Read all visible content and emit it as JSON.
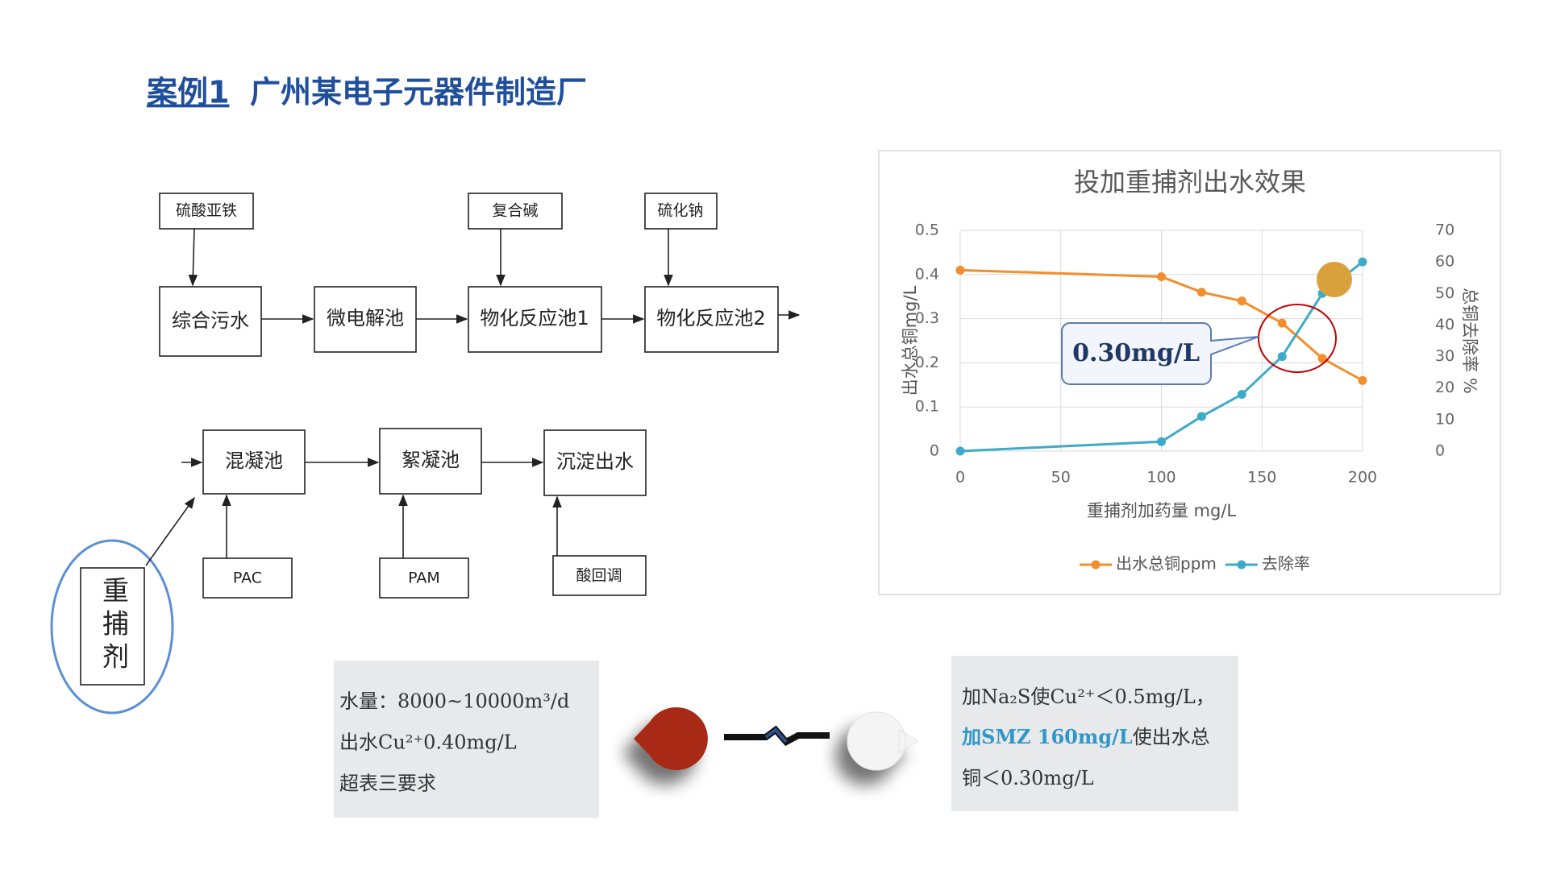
{
  "header": {
    "case": "案例1",
    "title": "广州某电子元器件制造厂"
  },
  "diagram": {
    "reagents_top": [
      "硫酸亚铁",
      "复合碱",
      "硫化钠"
    ],
    "row1": [
      "综合污水",
      "微电解池",
      "物化反应池1",
      "物化反应池2"
    ],
    "row2": [
      "混凝池",
      "絮凝池",
      "沉淀出水"
    ],
    "reagents_bottom": [
      "PAC",
      "PAM",
      "酸回调"
    ],
    "additive": "重捕剂"
  },
  "chart_data": {
    "type": "line",
    "title": "投加重捕剂出水效果",
    "x": [
      0,
      100,
      120,
      140,
      160,
      180,
      200
    ],
    "series": [
      {
        "name": "出水总铜ppm",
        "color": "#f28e2b",
        "values": [
          0.41,
          0.395,
          0.36,
          0.34,
          0.29,
          0.21,
          0.16
        ]
      },
      {
        "name": "去除率",
        "color": "#3fa9c9",
        "axis": "y2",
        "values": [
          0,
          3,
          11,
          18,
          30,
          50,
          60
        ]
      }
    ],
    "xlim": [
      0,
      200
    ],
    "xticks": [
      0,
      50,
      100,
      150,
      200
    ],
    "ylim": [
      0,
      0.5
    ],
    "yticks": [
      0,
      0.1,
      0.2,
      0.3,
      0.4,
      0.5
    ],
    "y2lim": [
      0,
      70
    ],
    "y2ticks": [
      0,
      10,
      20,
      30,
      40,
      50,
      60,
      70
    ],
    "xlabel": "重捕剂加药量 mg/L",
    "ylabel": "出水总铜mg/L",
    "y2label": "总铜去除率 %",
    "grid": true,
    "legend": "bottom",
    "annotation": "0.30mg/L"
  },
  "notes": {
    "left": [
      "水量：8000~10000m³/d",
      "出水Cu²⁺0.40mg/L",
      "超表三要求"
    ],
    "right": [
      [
        "加Na₂S使Cu²⁺＜0.5mg/L，"
      ],
      [
        "加SMZ 160mg/L",
        "使出水总"
      ],
      [
        "铜＜0.30mg/L"
      ]
    ]
  }
}
